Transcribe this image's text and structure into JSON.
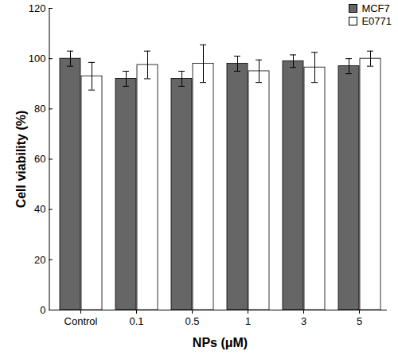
{
  "chart_data": {
    "type": "bar",
    "x_label": "NPs (μM)",
    "y_label": "Cell viability (%)",
    "categories": [
      "Control",
      "0.1",
      "0.5",
      "1",
      "3",
      "5"
    ],
    "series": [
      {
        "name": "MCF7",
        "color": "#666666",
        "values": [
          100,
          92,
          92,
          98,
          99,
          97
        ],
        "errors": [
          3,
          3,
          3,
          3,
          2.5,
          3
        ]
      },
      {
        "name": "E0771",
        "color": "#ffffff",
        "values": [
          93,
          97.5,
          98,
          95,
          96.5,
          100
        ],
        "errors": [
          5.5,
          5.5,
          7.5,
          4.5,
          6,
          3
        ]
      }
    ],
    "ylim": [
      0,
      120
    ],
    "yticks": [
      0,
      20,
      40,
      60,
      80,
      100,
      120
    ],
    "legend": "top-right",
    "grid": false
  }
}
